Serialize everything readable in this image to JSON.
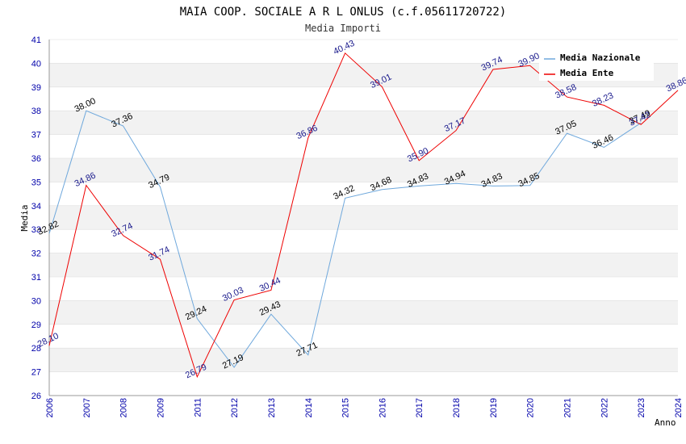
{
  "chart_data": {
    "type": "line",
    "title": "MAIA COOP. SOCIALE A R L ONLUS (c.f.05611720722)",
    "subtitle": "Media Importi",
    "xlabel": "Anno",
    "ylabel": "Media",
    "ylim": [
      26,
      41
    ],
    "yticks": [
      "26",
      "27",
      "28",
      "29",
      "30",
      "31",
      "32",
      "33",
      "34",
      "35",
      "36",
      "37",
      "38",
      "39",
      "40",
      "41"
    ],
    "categories": [
      "2006",
      "2007",
      "2008",
      "2009",
      "2011",
      "2012",
      "2013",
      "2014",
      "2015",
      "2016",
      "2017",
      "2018",
      "2019",
      "2020",
      "2021",
      "2022",
      "2023",
      "2024"
    ],
    "grid": "horizontal-bands",
    "legend_position": "top-right",
    "series": [
      {
        "name": "Media Nazionale",
        "color": "#6fa8dc",
        "values": [
          32.82,
          38.0,
          37.36,
          34.79,
          29.24,
          27.19,
          29.43,
          27.71,
          34.32,
          34.68,
          34.83,
          34.94,
          34.83,
          34.85,
          37.05,
          36.46,
          37.49,
          null
        ],
        "labels": [
          "32.82",
          "38.00",
          "37.36",
          "34.79",
          "29.24",
          "27.19",
          "29.43",
          "27.71",
          "34.32",
          "34.68",
          "34.83",
          "34.94",
          "34.83",
          "34.85",
          "37.05",
          "36.46",
          "37.49",
          ""
        ]
      },
      {
        "name": "Media Ente",
        "color": "#ee0000",
        "values": [
          28.1,
          34.86,
          32.74,
          31.74,
          26.79,
          30.03,
          30.44,
          36.86,
          40.43,
          39.01,
          35.9,
          37.17,
          39.74,
          39.9,
          38.58,
          38.23,
          37.42,
          38.86
        ],
        "labels": [
          "28.10",
          "34.86",
          "32.74",
          "31.74",
          "26.79",
          "30.03",
          "30.44",
          "36.86",
          "40.43",
          "39.01",
          "35.90",
          "37.17",
          "39.74",
          "39.90",
          "38.58",
          "38.23",
          "37.42",
          "38.86"
        ]
      }
    ]
  }
}
